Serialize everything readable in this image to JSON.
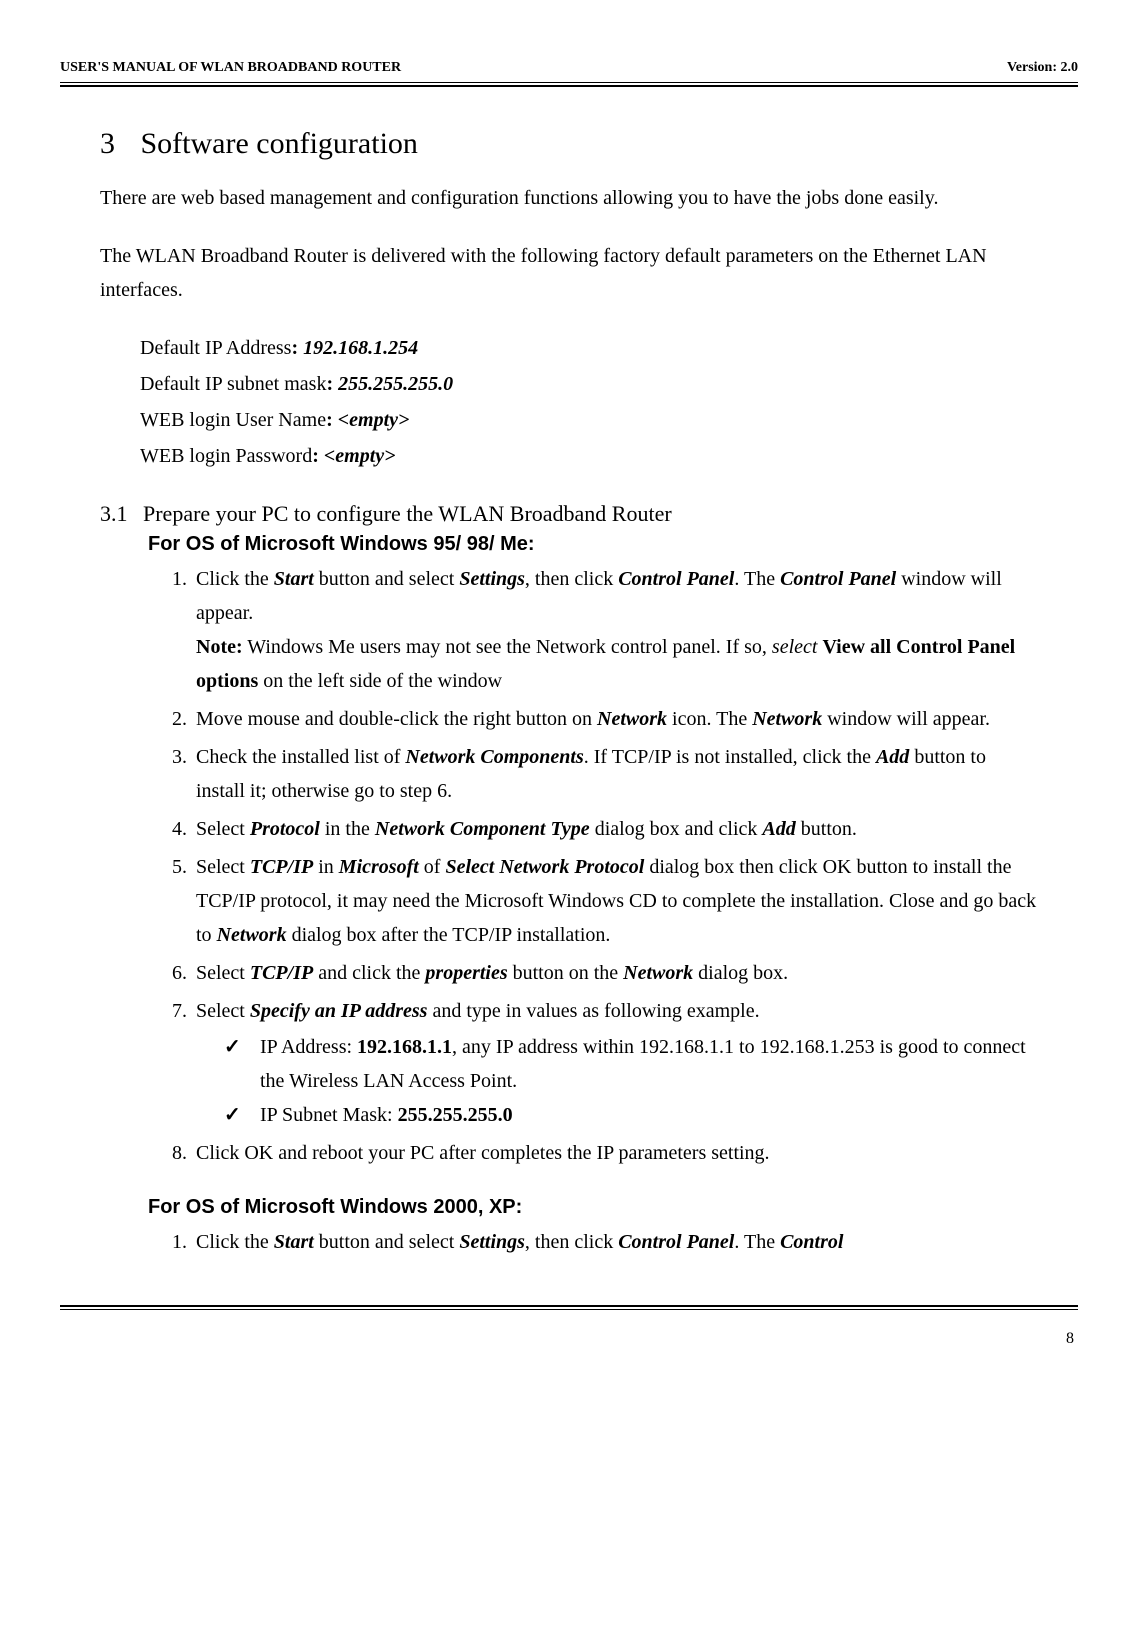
{
  "header": {
    "left": "USER'S MANUAL OF WLAN BROADBAND ROUTER",
    "right": "Version: 2.0"
  },
  "chapter": {
    "number": "3",
    "title": "Software configuration"
  },
  "intro1": "There are web based management and configuration functions allowing you to have the jobs done easily.",
  "intro2": "The WLAN Broadband Router is delivered with the following factory default parameters on the Ethernet LAN interfaces.",
  "defaults": {
    "ip_label": "Default IP Address",
    "ip_value": "192.168.1.254",
    "mask_label": "Default IP subnet mask",
    "mask_value": "255.255.255.0",
    "user_label": "WEB login User Name",
    "user_value": "<empty>",
    "pass_label": "WEB login Password",
    "pass_value": "<empty>"
  },
  "section1": {
    "number": "3.1",
    "title": "Prepare your PC to configure the WLAN Broadband Router"
  },
  "os1_heading": "For OS of Microsoft Windows 95/ 98/ Me:",
  "step1": {
    "t1": "Click the ",
    "t2": "Start",
    "t3": " button and select ",
    "t4": "Settings",
    "t5": ", then click ",
    "t6": "Control Panel",
    "t7": ". The ",
    "t8": "Control Panel",
    "t9": " window will appear.",
    "note_label": "Note:",
    "note_t1": " Windows Me users may not see the Network control panel. If so, ",
    "note_t2": "select",
    "note_t3": " ",
    "note_t4": "View all Control Panel options",
    "note_t5": " on the left side of the window"
  },
  "step2": {
    "t1": "Move mouse and double-click the right button on ",
    "t2": "Network",
    "t3": " icon. The ",
    "t4": "Network",
    "t5": " window will appear."
  },
  "step3": {
    "t1": "Check the installed list of ",
    "t2": "Network Components",
    "t3": ". If TCP/IP is not installed, click the ",
    "t4": "Add",
    "t5": " button to install it; otherwise go to step 6."
  },
  "step4": {
    "t1": "Select ",
    "t2": "Protocol",
    "t3": " in the ",
    "t4": "Network Component Type",
    "t5": " dialog box and click ",
    "t6": "Add",
    "t7": " button."
  },
  "step5": {
    "t1": "Select ",
    "t2": "TCP/IP",
    "t3": " in ",
    "t4": "Microsoft",
    "t5": " of ",
    "t6": "Select Network Protocol",
    "t7": " dialog box then click OK button to install the TCP/IP protocol, it may need the Microsoft Windows CD to complete the installation. Close and go back to ",
    "t8": "Network",
    "t9": " dialog box after the TCP/IP installation."
  },
  "step6": {
    "t1": "Select ",
    "t2": "TCP/IP",
    "t3": " and click the ",
    "t4": "properties",
    "t5": " button on the ",
    "t6": "Network",
    "t7": " dialog box."
  },
  "step7": {
    "t1": "Select ",
    "t2": "Specify an IP address",
    "t3": " and type in values as following example.",
    "bullet1_t1": "IP Address: ",
    "bullet1_t2": "192.168.1.1",
    "bullet1_t3": ", any IP address within 192.168.1.1 to 192.168.1.253 is good to connect the Wireless LAN Access Point.",
    "bullet2_t1": "IP Subnet Mask: ",
    "bullet2_t2": "255.255.255.0"
  },
  "step8": "Click OK and reboot your PC after completes the IP parameters setting.",
  "os2_heading": "For OS of Microsoft Windows 2000, XP:",
  "os2_step1": {
    "t1": "Click the ",
    "t2": "Start",
    "t3": " button and select ",
    "t4": "Settings",
    "t5": ", then click ",
    "t6": "Control Panel",
    "t7": ". The ",
    "t8": "Control"
  },
  "page_number": "8"
}
